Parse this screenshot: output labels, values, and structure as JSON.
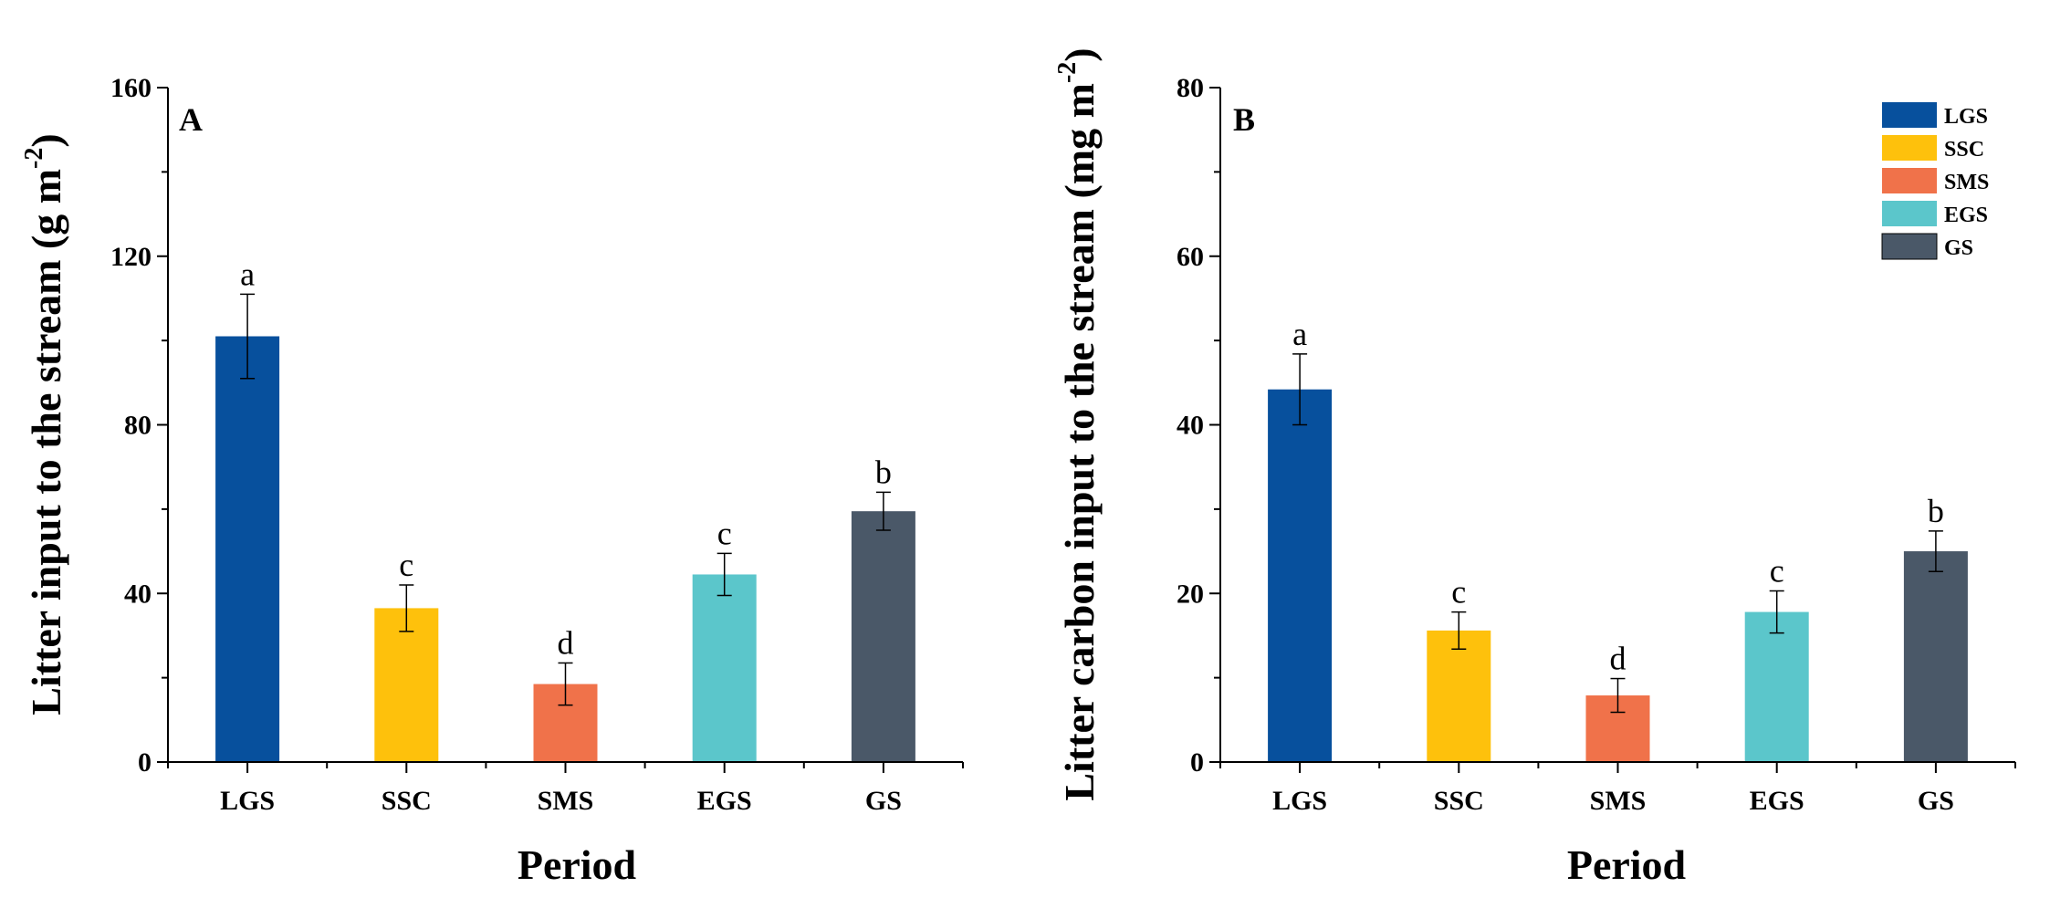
{
  "chart_data": [
    {
      "type": "bar",
      "panel": "A",
      "xlabel": "Period",
      "ylabel": "Litter input to the stream (g m",
      "ylabel_sup": "-2",
      "ylabel_close": ")",
      "ylim": [
        0,
        160
      ],
      "yticks": [
        "0",
        "40",
        "80",
        "120",
        "160"
      ],
      "categories": [
        "LGS",
        "SSC",
        "SMS",
        "EGS",
        "GS"
      ],
      "values": [
        101,
        36.5,
        18.5,
        44.5,
        59.5
      ],
      "errors": [
        10,
        5.5,
        5,
        5,
        4.5
      ],
      "letters": [
        "a",
        "c",
        "d",
        "c",
        "b"
      ]
    },
    {
      "type": "bar",
      "panel": "B",
      "xlabel": "Period",
      "ylabel": "Litter carbon input to the stream (mg m",
      "ylabel_sup": "-2",
      "ylabel_close": ")",
      "ylim": [
        0,
        80
      ],
      "yticks": [
        "0",
        "20",
        "40",
        "60",
        "80"
      ],
      "categories": [
        "LGS",
        "SSC",
        "SMS",
        "EGS",
        "GS"
      ],
      "values": [
        44.2,
        15.6,
        7.9,
        17.8,
        25
      ],
      "errors": [
        4.2,
        2.2,
        2,
        2.5,
        2.4
      ],
      "letters": [
        "a",
        "c",
        "d",
        "c",
        "b"
      ]
    }
  ],
  "legend": {
    "placement": "top-right",
    "entries": [
      "LGS",
      "SSC",
      "SMS",
      "EGS",
      "GS"
    ]
  },
  "colors": {
    "LGS": "#07509d",
    "SSC": "#fec10c",
    "SMS": "#f0724a",
    "EGS": "#5bc6cb",
    "GS": "#4a5868"
  }
}
